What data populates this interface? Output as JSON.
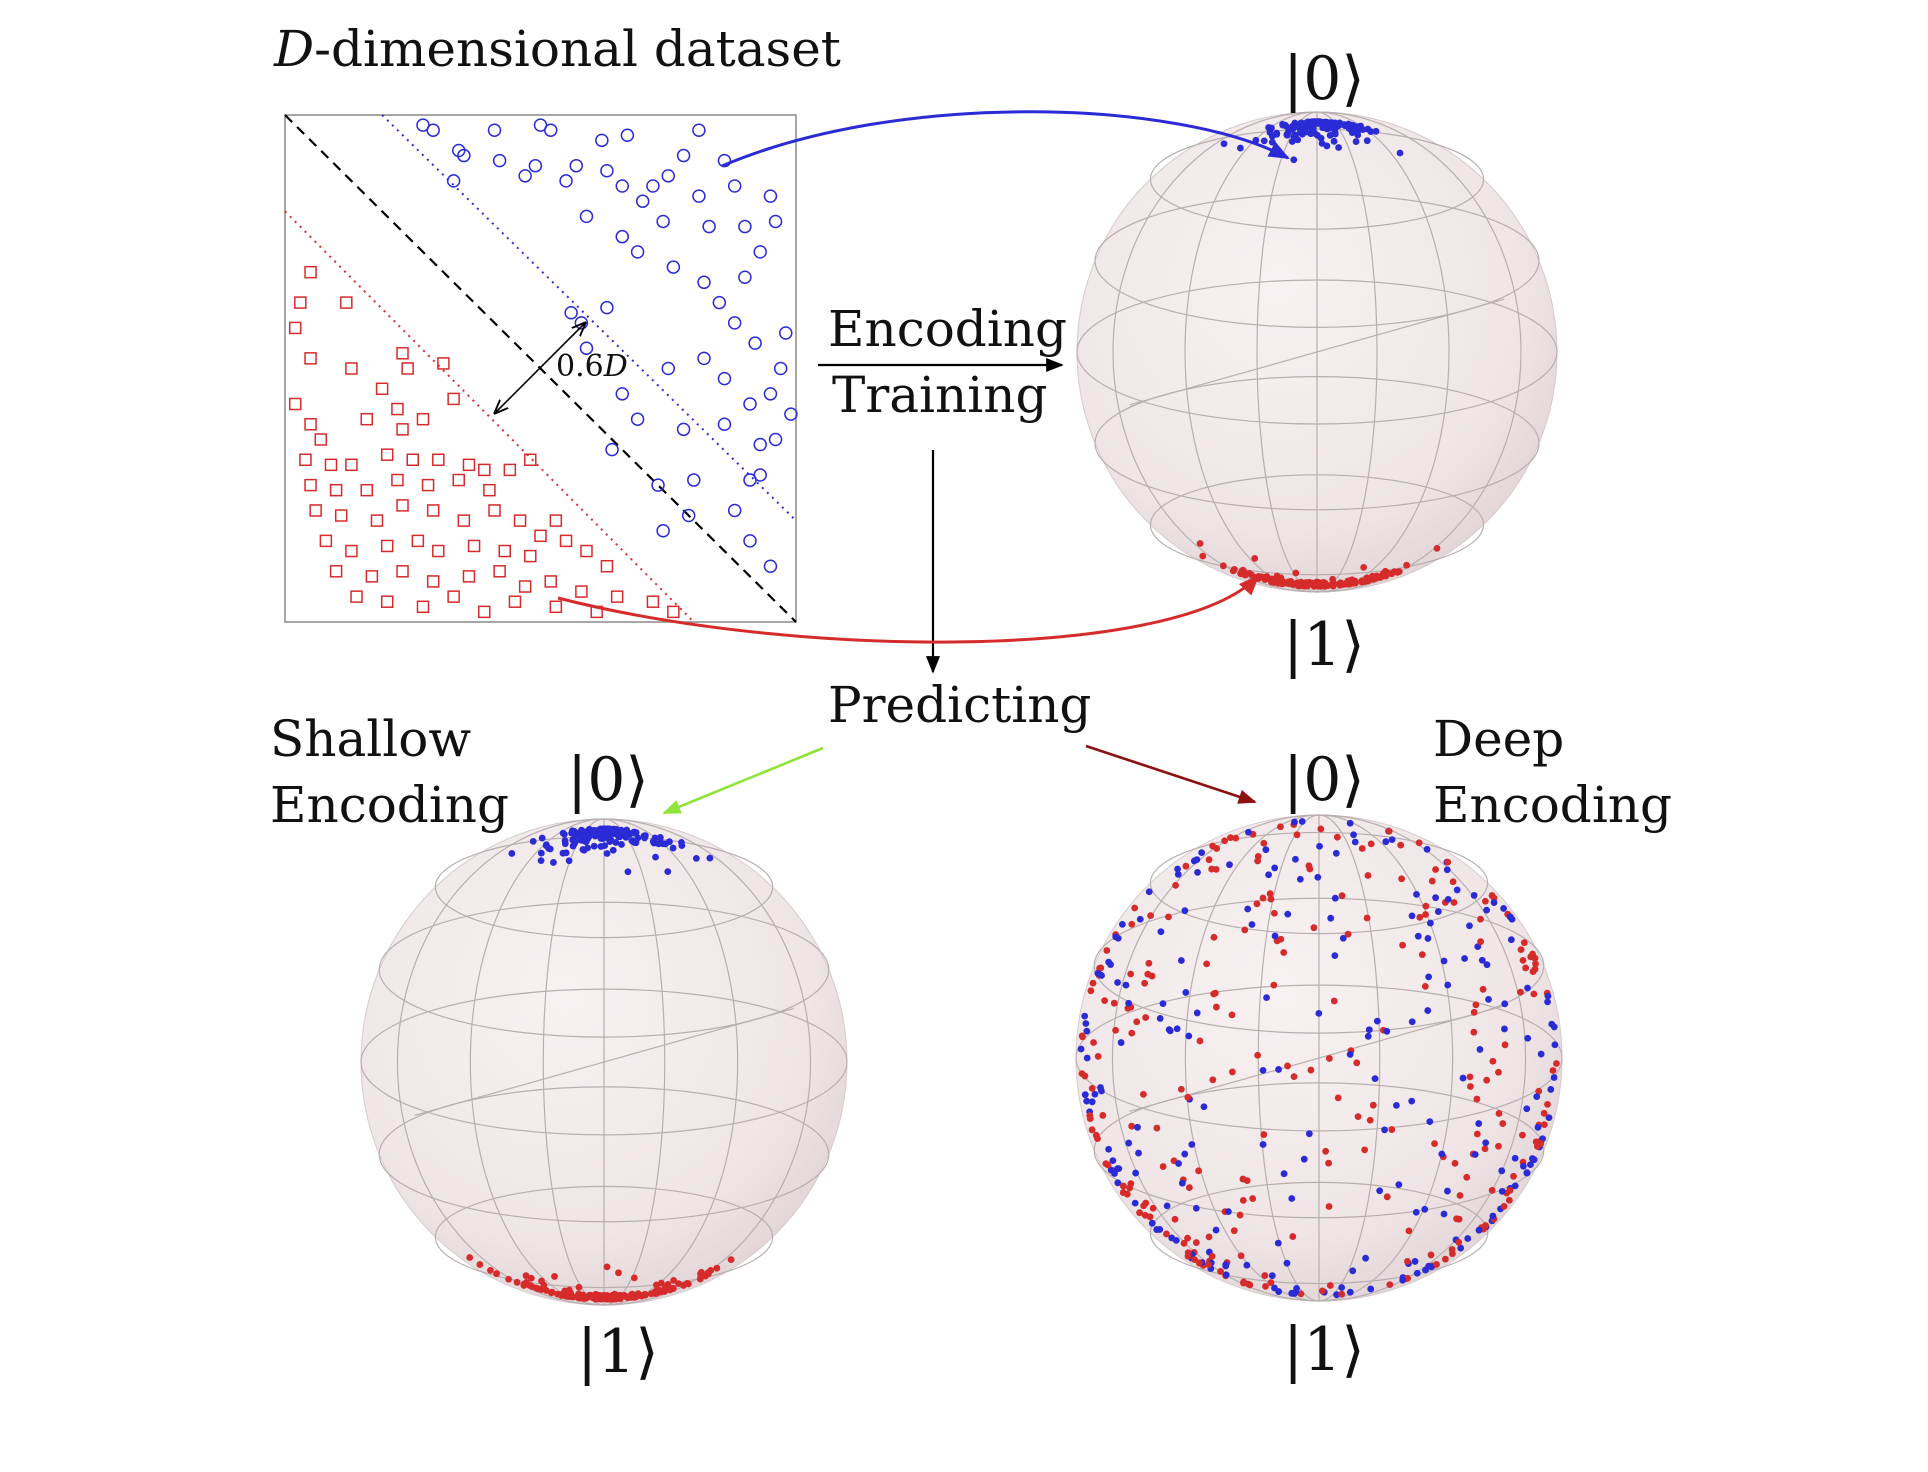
{
  "title": "D-dimensional dataset",
  "title_italic": "D",
  "title_rest": "-dimensional dataset",
  "margin_label": "0.6D",
  "margin_label_num": "0.6",
  "margin_label_var": "D",
  "encoding_label": "Encoding",
  "training_label": "Training",
  "predicting_label": "Predicting",
  "shallow_label_line1": "Shallow",
  "shallow_label_line2": "Encoding",
  "deep_label_line1": "Deep",
  "deep_label_line2": "Encoding",
  "ket0": "|0⟩",
  "ket1": "|1⟩",
  "colors": {
    "class0": "#2b2bd6",
    "class1": "#d62b2b",
    "shallow_arrow": "#8fe33a",
    "deep_arrow": "#8b1010",
    "sphere_fill": "#f1e7e8",
    "boundary": "#000000"
  },
  "dataset": {
    "class0_marker": "circle",
    "class1_marker": "square",
    "class0_points": [
      [
        0.27,
        0.02
      ],
      [
        0.29,
        0.03
      ],
      [
        0.41,
        0.03
      ],
      [
        0.5,
        0.02
      ],
      [
        0.81,
        0.03
      ],
      [
        0.34,
        0.07
      ],
      [
        0.35,
        0.08
      ],
      [
        0.33,
        0.13
      ],
      [
        0.49,
        0.1
      ],
      [
        0.57,
        0.1
      ],
      [
        0.63,
        0.11
      ],
      [
        0.75,
        0.12
      ],
      [
        0.72,
        0.14
      ],
      [
        0.78,
        0.08
      ],
      [
        0.62,
        0.05
      ],
      [
        0.42,
        0.09
      ],
      [
        0.47,
        0.12
      ],
      [
        0.55,
        0.13
      ],
      [
        0.66,
        0.14
      ],
      [
        0.7,
        0.17
      ],
      [
        0.74,
        0.21
      ],
      [
        0.81,
        0.16
      ],
      [
        0.83,
        0.22
      ],
      [
        0.88,
        0.14
      ],
      [
        0.95,
        0.16
      ],
      [
        0.96,
        0.21
      ],
      [
        0.93,
        0.27
      ],
      [
        0.9,
        0.32
      ],
      [
        0.85,
        0.37
      ],
      [
        0.88,
        0.41
      ],
      [
        0.92,
        0.45
      ],
      [
        0.97,
        0.5
      ],
      [
        0.98,
        0.43
      ],
      [
        0.95,
        0.55
      ],
      [
        0.82,
        0.48
      ],
      [
        0.75,
        0.5
      ],
      [
        0.66,
        0.55
      ],
      [
        0.69,
        0.6
      ],
      [
        0.64,
        0.66
      ],
      [
        0.78,
        0.62
      ],
      [
        0.86,
        0.61
      ],
      [
        0.91,
        0.57
      ],
      [
        0.96,
        0.64
      ],
      [
        0.99,
        0.59
      ],
      [
        0.93,
        0.71
      ],
      [
        0.88,
        0.78
      ],
      [
        0.91,
        0.84
      ],
      [
        0.95,
        0.89
      ],
      [
        0.8,
        0.72
      ],
      [
        0.73,
        0.73
      ],
      [
        0.58,
        0.41
      ],
      [
        0.59,
        0.46
      ],
      [
        0.56,
        0.39
      ],
      [
        0.63,
        0.38
      ],
      [
        0.69,
        0.27
      ],
      [
        0.76,
        0.3
      ],
      [
        0.82,
        0.33
      ],
      [
        0.52,
        0.03
      ],
      [
        0.67,
        0.04
      ],
      [
        0.86,
        0.09
      ],
      [
        0.59,
        0.2
      ],
      [
        0.66,
        0.24
      ],
      [
        0.9,
        0.22
      ],
      [
        0.86,
        0.52
      ],
      [
        0.93,
        0.65
      ],
      [
        0.79,
        0.79
      ],
      [
        0.74,
        0.82
      ],
      [
        0.91,
        0.72
      ]
    ],
    "class1_points": [
      [
        0.05,
        0.31
      ],
      [
        0.03,
        0.37
      ],
      [
        0.02,
        0.42
      ],
      [
        0.12,
        0.37
      ],
      [
        0.05,
        0.48
      ],
      [
        0.13,
        0.5
      ],
      [
        0.23,
        0.47
      ],
      [
        0.19,
        0.54
      ],
      [
        0.24,
        0.5
      ],
      [
        0.02,
        0.57
      ],
      [
        0.05,
        0.61
      ],
      [
        0.07,
        0.64
      ],
      [
        0.22,
        0.58
      ],
      [
        0.23,
        0.62
      ],
      [
        0.27,
        0.6
      ],
      [
        0.33,
        0.56
      ],
      [
        0.04,
        0.68
      ],
      [
        0.09,
        0.69
      ],
      [
        0.13,
        0.69
      ],
      [
        0.2,
        0.67
      ],
      [
        0.25,
        0.68
      ],
      [
        0.3,
        0.68
      ],
      [
        0.36,
        0.69
      ],
      [
        0.39,
        0.7
      ],
      [
        0.05,
        0.73
      ],
      [
        0.1,
        0.74
      ],
      [
        0.16,
        0.74
      ],
      [
        0.22,
        0.72
      ],
      [
        0.28,
        0.73
      ],
      [
        0.34,
        0.72
      ],
      [
        0.4,
        0.74
      ],
      [
        0.44,
        0.7
      ],
      [
        0.48,
        0.68
      ],
      [
        0.06,
        0.78
      ],
      [
        0.11,
        0.79
      ],
      [
        0.18,
        0.8
      ],
      [
        0.23,
        0.77
      ],
      [
        0.29,
        0.78
      ],
      [
        0.35,
        0.8
      ],
      [
        0.41,
        0.78
      ],
      [
        0.46,
        0.8
      ],
      [
        0.5,
        0.83
      ],
      [
        0.53,
        0.8
      ],
      [
        0.08,
        0.84
      ],
      [
        0.13,
        0.86
      ],
      [
        0.2,
        0.85
      ],
      [
        0.26,
        0.84
      ],
      [
        0.3,
        0.86
      ],
      [
        0.37,
        0.85
      ],
      [
        0.43,
        0.86
      ],
      [
        0.48,
        0.87
      ],
      [
        0.55,
        0.84
      ],
      [
        0.59,
        0.86
      ],
      [
        0.63,
        0.89
      ],
      [
        0.1,
        0.9
      ],
      [
        0.17,
        0.91
      ],
      [
        0.23,
        0.9
      ],
      [
        0.29,
        0.92
      ],
      [
        0.36,
        0.91
      ],
      [
        0.42,
        0.9
      ],
      [
        0.47,
        0.93
      ],
      [
        0.52,
        0.92
      ],
      [
        0.58,
        0.94
      ],
      [
        0.65,
        0.95
      ],
      [
        0.72,
        0.96
      ],
      [
        0.76,
        0.98
      ],
      [
        0.14,
        0.95
      ],
      [
        0.2,
        0.96
      ],
      [
        0.27,
        0.97
      ],
      [
        0.33,
        0.95
      ],
      [
        0.39,
        0.98
      ],
      [
        0.45,
        0.96
      ],
      [
        0.53,
        0.97
      ],
      [
        0.61,
        0.98
      ],
      [
        0.16,
        0.6
      ],
      [
        0.31,
        0.49
      ]
    ]
  },
  "spheres": [
    {
      "id": "training",
      "class0": {
        "spread": 0.34,
        "count": 170
      },
      "class1": {
        "spread": 0.55,
        "count": 190
      }
    },
    {
      "id": "shallow",
      "class0": {
        "spread": 0.42,
        "count": 160
      },
      "class1": {
        "spread": 0.62,
        "count": 190
      }
    },
    {
      "id": "deep",
      "class0": {
        "spread": 2.0,
        "count": 230
      },
      "class1": {
        "spread": 2.0,
        "count": 260
      }
    }
  ]
}
